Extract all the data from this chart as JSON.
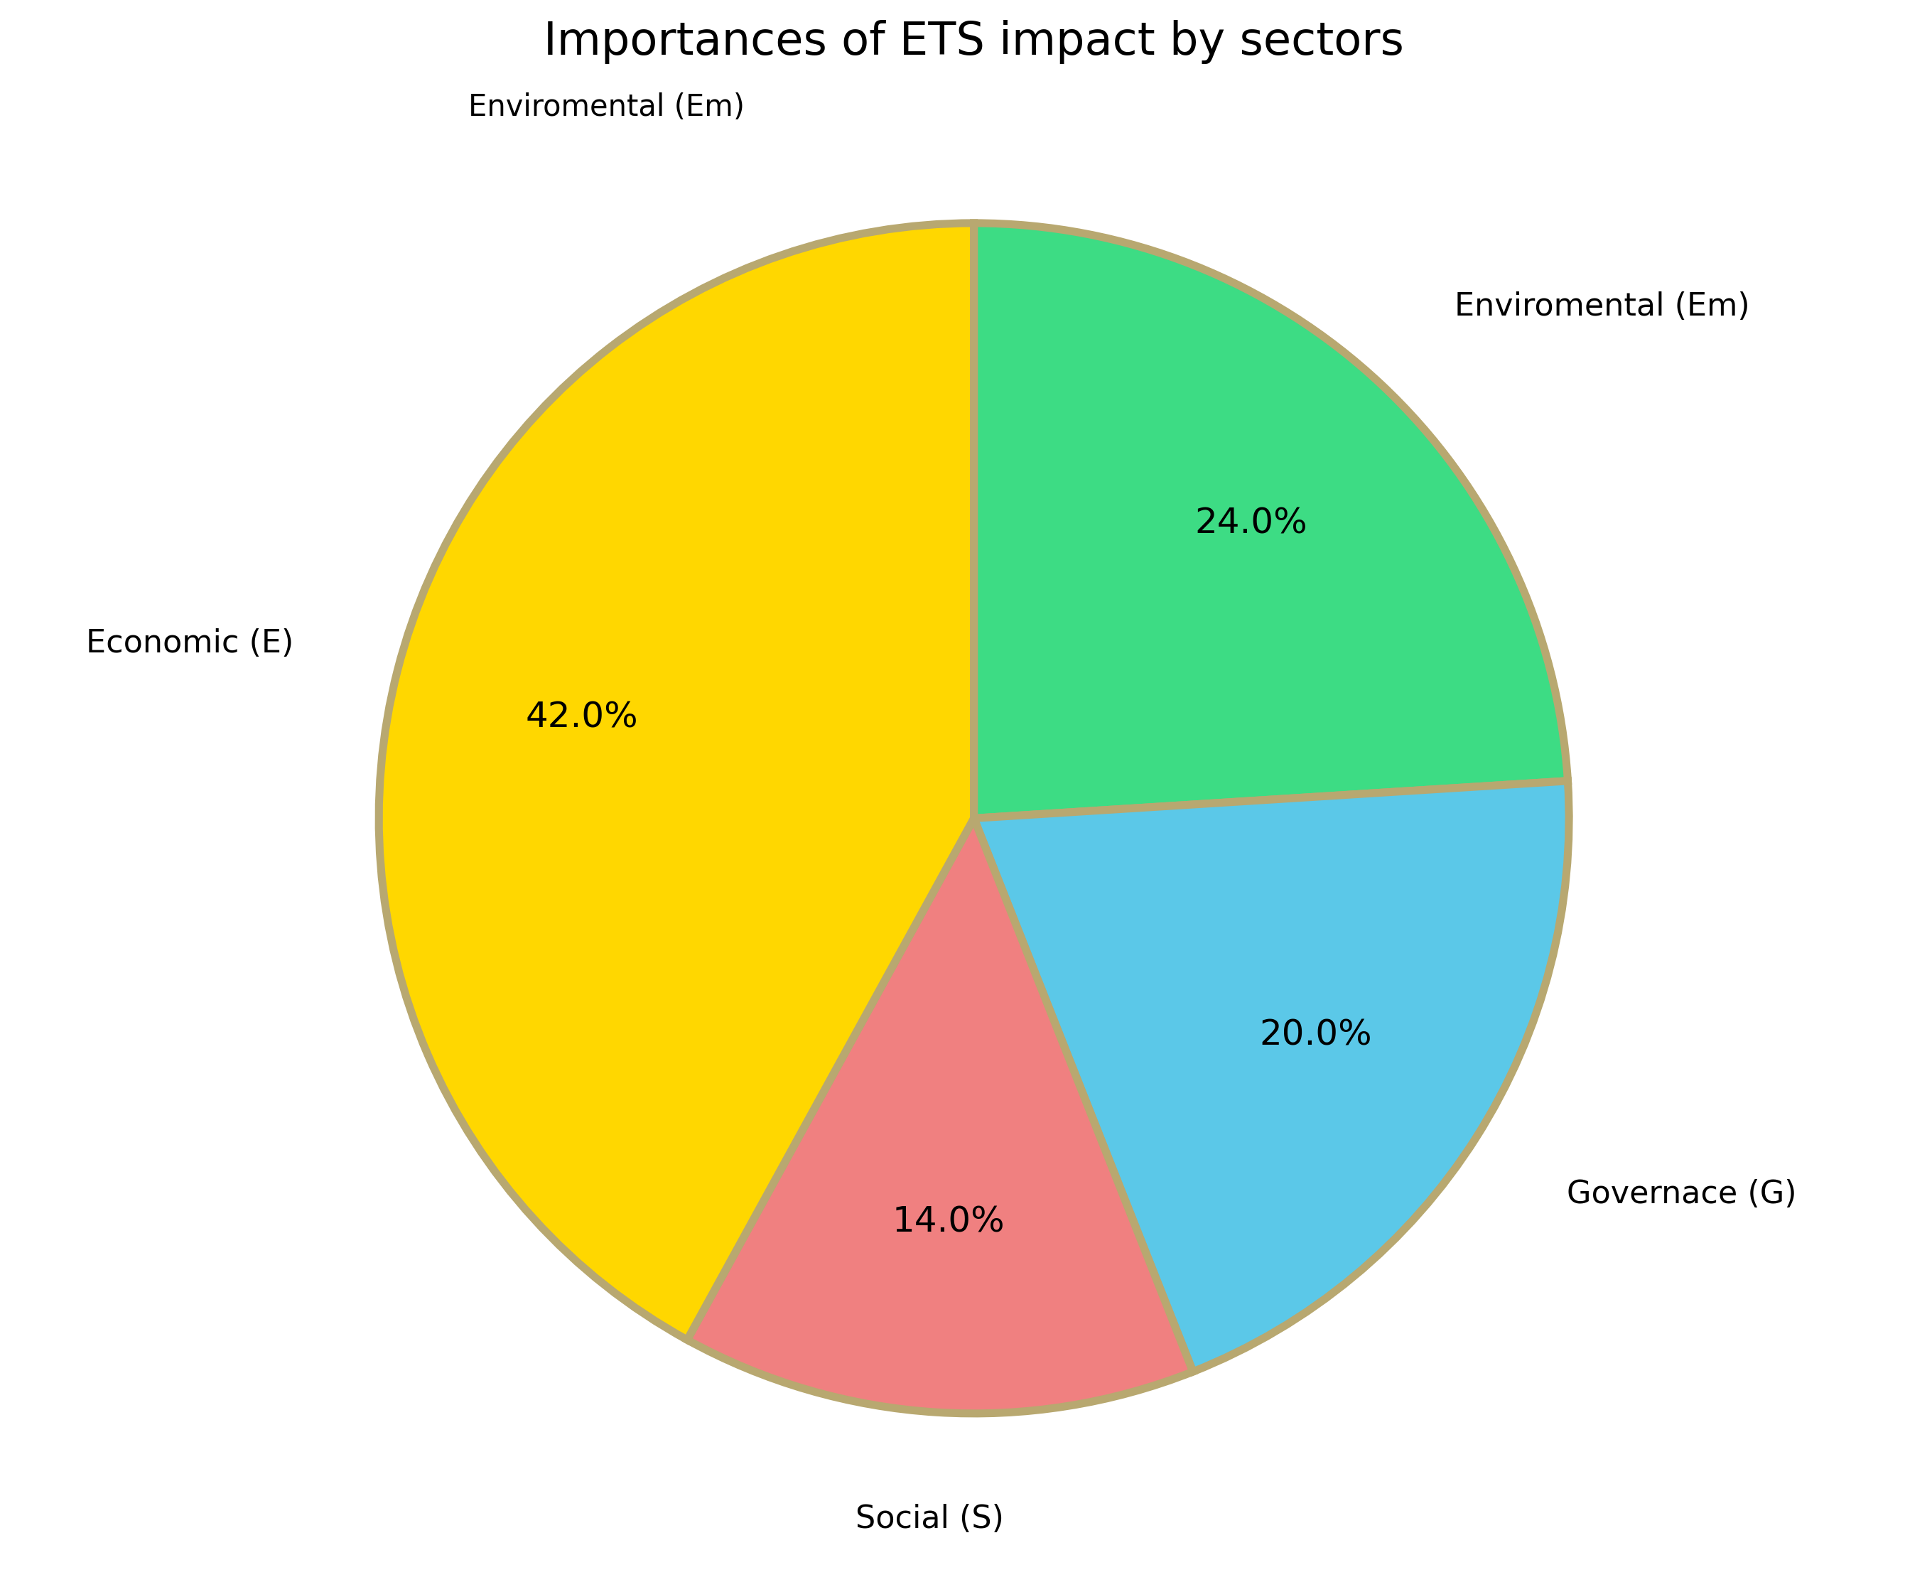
{
  "title": "Importances of ETS impact by sectors",
  "subtitle": "Enviromental (Em)",
  "labels": [
    "Enviromental (Em)",
    "Governace (G)",
    "Social (S)",
    "Economic (E)"
  ],
  "values": [
    24.0,
    20.0,
    14.0,
    42.0
  ],
  "colors": [
    "#3DDC84",
    "#5BC8E8",
    "#F08080",
    "#FFD700"
  ],
  "wedge_edge_color": "#B8A870",
  "wedge_edge_width": 8,
  "autopct_fontsize": 36,
  "label_fontsize": 32,
  "title_fontsize": 46,
  "subtitle_fontsize": 30,
  "startangle": 90,
  "pctdistance": 0.68,
  "labeldistance": 1.18
}
